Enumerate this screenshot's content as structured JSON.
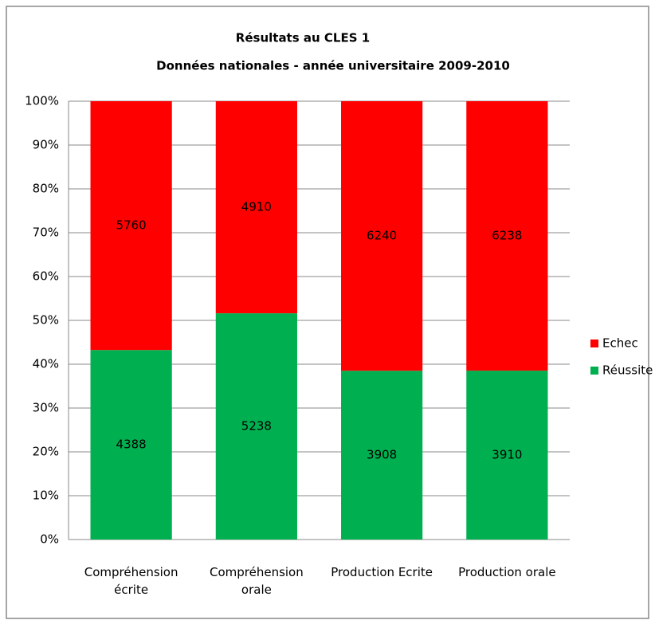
{
  "chart_data": {
    "type": "stacked_bar_100",
    "title": "Résultats au CLES 1",
    "subtitle": "Données nationales -  année universitaire 2009-2010",
    "categories": [
      "Compréhension écrite",
      "Compréhension orale",
      "Production Ecrite",
      "Production orale"
    ],
    "series": [
      {
        "name": "Réussite",
        "color": "#00b050",
        "values": [
          4388,
          5238,
          3908,
          3910
        ]
      },
      {
        "name": "Echec",
        "color": "#ff0000",
        "values": [
          5760,
          4910,
          6240,
          6238
        ]
      }
    ],
    "ylim": [
      0,
      100
    ],
    "yticks": [
      {
        "value": 0,
        "label": "0%"
      },
      {
        "value": 10,
        "label": "10%"
      },
      {
        "value": 20,
        "label": "20%"
      },
      {
        "value": 30,
        "label": "30%"
      },
      {
        "value": 40,
        "label": "40%"
      },
      {
        "value": 50,
        "label": "50%"
      },
      {
        "value": 60,
        "label": "60%"
      },
      {
        "value": 70,
        "label": "70%"
      },
      {
        "value": 80,
        "label": "80%"
      },
      {
        "value": 90,
        "label": "90%"
      },
      {
        "value": 100,
        "label": "100%"
      }
    ],
    "grid": true,
    "legend": "right"
  }
}
